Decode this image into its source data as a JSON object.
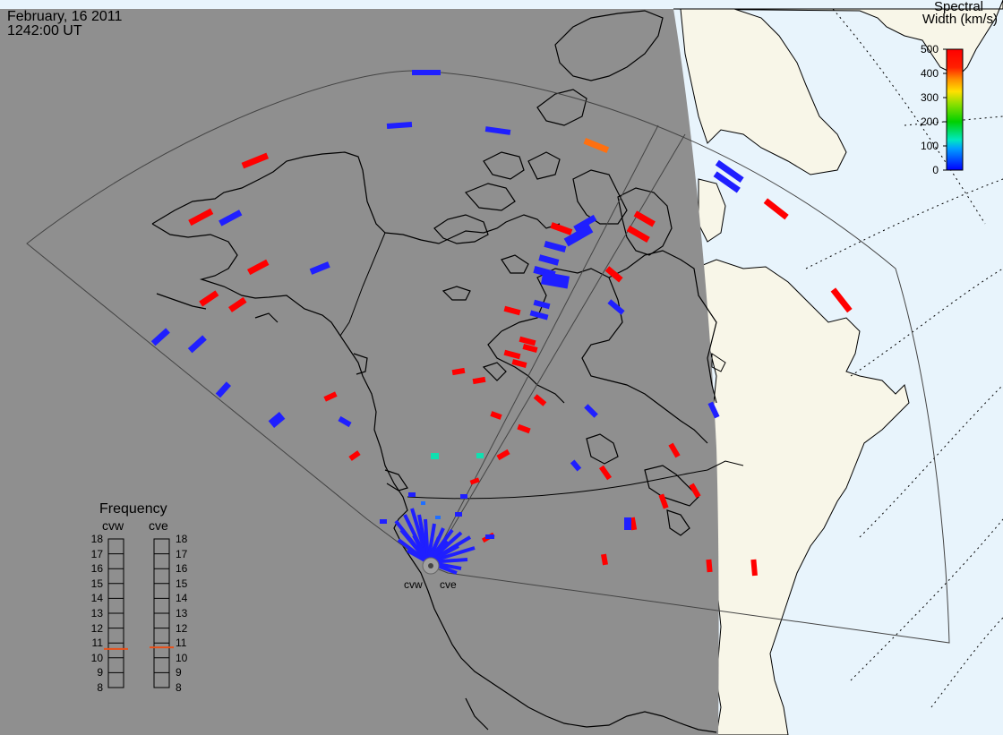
{
  "header": {
    "date": "February, 16 2011",
    "time": "1242:00 UT"
  },
  "colorbar": {
    "title_line1": "Spectral",
    "title_line2": "Width (km/s)",
    "ticks": [
      "500",
      "400",
      "300",
      "200",
      "100",
      "0"
    ]
  },
  "frequency_panel": {
    "title": "Frequency",
    "radars": [
      "cvw",
      "cve"
    ],
    "ticks": [
      "18",
      "17",
      "16",
      "15",
      "14",
      "13",
      "12",
      "11",
      "10",
      "9",
      "8"
    ],
    "cvw_value_mhz": 10.6,
    "cve_value_mhz": 10.7,
    "marker_color": "#e8501a"
  },
  "sites": {
    "west": "cvw",
    "east": "cve"
  },
  "colors": {
    "night": "#8f8f8f",
    "day_land": "#f8f6e8",
    "day_sea": "#e8f4fc",
    "red": "#ff0000",
    "blue": "#1f1fff",
    "orange": "#ff7010",
    "cyan": "#10e0b0"
  }
}
